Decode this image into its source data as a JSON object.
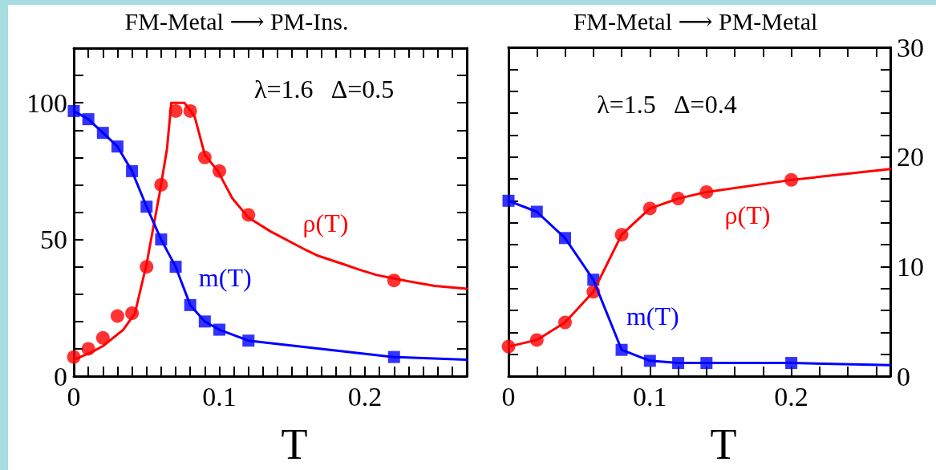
{
  "chart_data": [
    {
      "type": "line",
      "title": "FM-Metal ⟶ PM-Ins.",
      "xlabel": "T",
      "annotations": [
        "λ=1.6   Δ=0.5"
      ],
      "xlim": [
        0,
        0.27
      ],
      "xticks": [
        0,
        {
          "value": 0.01,
          "label": null
        },
        {
          "value": 0.02,
          "label": null
        },
        {
          "value": 0.03,
          "label": null
        },
        {
          "value": 0.04,
          "label": null
        },
        {
          "value": 0.05,
          "label": null
        },
        {
          "value": 0.06,
          "label": null
        },
        {
          "value": 0.07,
          "label": null
        },
        {
          "value": 0.08,
          "label": null
        },
        {
          "value": 0.09,
          "label": null
        },
        0.1,
        {
          "value": 0.11,
          "label": null
        },
        {
          "value": 0.12,
          "label": null
        },
        {
          "value": 0.13,
          "label": null
        },
        {
          "value": 0.14,
          "label": null
        },
        {
          "value": 0.15,
          "label": null
        },
        {
          "value": 0.16,
          "label": null
        },
        {
          "value": 0.17,
          "label": null
        },
        {
          "value": 0.18,
          "label": null
        },
        {
          "value": 0.19,
          "label": null
        },
        0.2,
        {
          "value": 0.21,
          "label": null
        },
        {
          "value": 0.22,
          "label": null
        },
        {
          "value": 0.23,
          "label": null
        },
        {
          "value": 0.24,
          "label": null
        },
        {
          "value": 0.25,
          "label": null
        },
        {
          "value": 0.26,
          "label": null
        }
      ],
      "ylim": [
        0,
        120
      ],
      "yticks": [
        0,
        {
          "value": 10,
          "label": null
        },
        {
          "value": 20,
          "label": null
        },
        {
          "value": 30,
          "label": null
        },
        {
          "value": 40,
          "label": null
        },
        50,
        {
          "value": 60,
          "label": null
        },
        {
          "value": 70,
          "label": null
        },
        {
          "value": 80,
          "label": null
        },
        {
          "value": 90,
          "label": null
        },
        100,
        {
          "value": 110,
          "label": null
        }
      ],
      "series": [
        {
          "name": "ρ(T)",
          "color": "#ff0000",
          "marker": "none",
          "x": [
            0,
            0.013,
            0.02,
            0.034,
            0.042,
            0.05,
            0.059,
            0.064,
            0.067,
            0.076,
            0.083,
            0.09,
            0.099,
            0.109,
            0.12,
            0.135,
            0.16,
            0.168,
            0.185,
            0.196,
            0.208,
            0.227,
            0.248,
            0.27
          ],
          "values": [
            6,
            9,
            11,
            17,
            23,
            41,
            67,
            83,
            100,
            100,
            95,
            81,
            75,
            65,
            58,
            53,
            46,
            44,
            41,
            39,
            37,
            35,
            33,
            32
          ]
        },
        {
          "type": "scatter",
          "color": "#ff0000",
          "marker": "circle",
          "x": [
            0,
            0.01,
            0.02,
            0.03,
            0.04,
            0.05,
            0.06,
            0.07,
            0.08,
            0.09,
            0.1,
            0.12,
            0.22
          ],
          "values": [
            7,
            10,
            14,
            22,
            23,
            40,
            70,
            97,
            97,
            80,
            75,
            59,
            35
          ]
        },
        {
          "name": "m(T)",
          "color": "#0000ff",
          "marker": "none",
          "x": [
            0,
            0.01,
            0.02,
            0.03,
            0.04,
            0.05,
            0.06,
            0.07,
            0.08,
            0.09,
            0.1,
            0.12,
            0.22,
            0.27
          ],
          "values": [
            97,
            94,
            89,
            84,
            75,
            62,
            50,
            40,
            26,
            20,
            17,
            13,
            7,
            6
          ]
        },
        {
          "type": "scatter",
          "color": "#0000ff",
          "marker": "square",
          "x": [
            0,
            0.01,
            0.02,
            0.03,
            0.04,
            0.05,
            0.06,
            0.07,
            0.08,
            0.09,
            0.1,
            0.12,
            0.22
          ],
          "values": [
            97,
            94,
            89,
            84,
            75,
            62,
            50,
            40,
            26,
            20,
            17,
            13,
            7
          ]
        }
      ]
    },
    {
      "type": "line",
      "title": "FM-Metal ⟶ PM-Metal",
      "xlabel": "T",
      "annotations": [
        "λ=1.5   Δ=0.4"
      ],
      "xlim": [
        0,
        0.27
      ],
      "xticks": [
        0,
        {
          "value": 0.02,
          "label": null
        },
        {
          "value": 0.04,
          "label": null
        },
        {
          "value": 0.06,
          "label": null
        },
        {
          "value": 0.08,
          "label": null
        },
        0.1,
        {
          "value": 0.12,
          "label": null
        },
        {
          "value": 0.14,
          "label": null
        },
        {
          "value": 0.16,
          "label": null
        },
        {
          "value": 0.18,
          "label": null
        },
        0.2,
        {
          "value": 0.22,
          "label": null
        },
        {
          "value": 0.24,
          "label": null
        },
        {
          "value": 0.26,
          "label": null
        }
      ],
      "y2lim": [
        0,
        30
      ],
      "y2ticks": [
        0,
        {
          "value": 2,
          "label": null
        },
        {
          "value": 4,
          "label": null
        },
        {
          "value": 6,
          "label": null
        },
        {
          "value": 8,
          "label": null
        },
        10,
        {
          "value": 12,
          "label": null
        },
        {
          "value": 14,
          "label": null
        },
        {
          "value": 16,
          "label": null
        },
        {
          "value": 18,
          "label": null
        },
        20,
        {
          "value": 22,
          "label": null
        },
        {
          "value": 24,
          "label": null
        },
        {
          "value": 26,
          "label": null
        },
        {
          "value": 28,
          "label": null
        },
        30
      ],
      "series": [
        {
          "name": "ρ(T)",
          "axis": "y2",
          "color": "#ff0000",
          "marker": "none",
          "x": [
            0,
            0.02,
            0.04,
            0.06,
            0.08,
            0.1,
            0.12,
            0.14,
            0.2,
            0.27
          ],
          "values": [
            2.7,
            3.3,
            4.9,
            7.7,
            12.9,
            15.3,
            16.2,
            16.8,
            17.9,
            18.9
          ]
        },
        {
          "type": "scatter",
          "axis": "y2",
          "color": "#ff0000",
          "marker": "circle",
          "x": [
            0,
            0.02,
            0.04,
            0.06,
            0.08,
            0.1,
            0.12,
            0.14,
            0.2
          ],
          "values": [
            2.7,
            3.3,
            4.9,
            7.7,
            12.9,
            15.3,
            16.2,
            16.8,
            17.9
          ]
        },
        {
          "name": "m(T)",
          "axis": "y2",
          "color": "#0000ff",
          "marker": "none",
          "x": [
            0,
            0.02,
            0.04,
            0.06,
            0.08,
            0.1,
            0.12,
            0.14,
            0.2,
            0.27
          ],
          "values": [
            16,
            15,
            12.6,
            8.8,
            2.4,
            1.4,
            1.2,
            1.2,
            1.2,
            1.0
          ]
        },
        {
          "type": "scatter",
          "axis": "y2",
          "color": "#0000ff",
          "marker": "square",
          "x": [
            0,
            0.02,
            0.04,
            0.06,
            0.08,
            0.1,
            0.12,
            0.14,
            0.2
          ],
          "values": [
            16,
            15,
            12.6,
            8.8,
            2.4,
            1.4,
            1.2,
            1.2,
            1.2
          ]
        }
      ]
    }
  ]
}
